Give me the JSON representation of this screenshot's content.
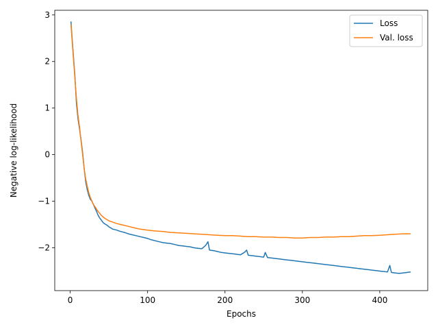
{
  "chart_data": {
    "type": "line",
    "title": "",
    "xlabel": "Epochs",
    "ylabel": "Negative log-likelihood",
    "xlim": [
      -20,
      462
    ],
    "ylim": [
      -2.92,
      3.1
    ],
    "xticks": [
      0,
      100,
      200,
      300,
      400
    ],
    "yticks": [
      -2,
      -1,
      0,
      1,
      2,
      3
    ],
    "grid": false,
    "legend_position": "top-right",
    "series": [
      {
        "name": "Loss",
        "color": "#1f77b4",
        "points": [
          [
            1,
            2.86
          ],
          [
            2,
            2.6
          ],
          [
            4,
            2.15
          ],
          [
            6,
            1.7
          ],
          [
            8,
            1.1
          ],
          [
            10,
            0.78
          ],
          [
            12,
            0.55
          ],
          [
            14,
            0.32
          ],
          [
            16,
            0.05
          ],
          [
            18,
            -0.3
          ],
          [
            20,
            -0.58
          ],
          [
            22,
            -0.75
          ],
          [
            24,
            -0.88
          ],
          [
            26,
            -0.96
          ],
          [
            28,
            -1.0
          ],
          [
            30,
            -1.07
          ],
          [
            32,
            -1.15
          ],
          [
            34,
            -1.22
          ],
          [
            36,
            -1.3
          ],
          [
            38,
            -1.36
          ],
          [
            40,
            -1.4
          ],
          [
            42,
            -1.45
          ],
          [
            44,
            -1.48
          ],
          [
            46,
            -1.5
          ],
          [
            48,
            -1.52
          ],
          [
            50,
            -1.55
          ],
          [
            55,
            -1.6
          ],
          [
            60,
            -1.62
          ],
          [
            65,
            -1.65
          ],
          [
            70,
            -1.67
          ],
          [
            75,
            -1.7
          ],
          [
            80,
            -1.72
          ],
          [
            85,
            -1.74
          ],
          [
            90,
            -1.76
          ],
          [
            95,
            -1.78
          ],
          [
            100,
            -1.8
          ],
          [
            105,
            -1.83
          ],
          [
            110,
            -1.85
          ],
          [
            115,
            -1.87
          ],
          [
            120,
            -1.89
          ],
          [
            125,
            -1.9
          ],
          [
            130,
            -1.91
          ],
          [
            135,
            -1.93
          ],
          [
            140,
            -1.95
          ],
          [
            145,
            -1.96
          ],
          [
            150,
            -1.97
          ],
          [
            155,
            -1.98
          ],
          [
            160,
            -2.0
          ],
          [
            165,
            -2.01
          ],
          [
            170,
            -2.02
          ],
          [
            175,
            -1.95
          ],
          [
            178,
            -1.87
          ],
          [
            180,
            -2.05
          ],
          [
            185,
            -2.06
          ],
          [
            190,
            -2.08
          ],
          [
            195,
            -2.1
          ],
          [
            200,
            -2.11
          ],
          [
            205,
            -2.12
          ],
          [
            210,
            -2.13
          ],
          [
            215,
            -2.14
          ],
          [
            220,
            -2.15
          ],
          [
            225,
            -2.1
          ],
          [
            228,
            -2.05
          ],
          [
            230,
            -2.16
          ],
          [
            235,
            -2.17
          ],
          [
            240,
            -2.18
          ],
          [
            245,
            -2.19
          ],
          [
            250,
            -2.2
          ],
          [
            252,
            -2.1
          ],
          [
            255,
            -2.21
          ],
          [
            260,
            -2.22
          ],
          [
            265,
            -2.23
          ],
          [
            270,
            -2.24
          ],
          [
            275,
            -2.25
          ],
          [
            280,
            -2.26
          ],
          [
            285,
            -2.27
          ],
          [
            290,
            -2.28
          ],
          [
            295,
            -2.29
          ],
          [
            300,
            -2.3
          ],
          [
            305,
            -2.31
          ],
          [
            310,
            -2.32
          ],
          [
            315,
            -2.33
          ],
          [
            320,
            -2.34
          ],
          [
            325,
            -2.35
          ],
          [
            330,
            -2.36
          ],
          [
            335,
            -2.37
          ],
          [
            340,
            -2.38
          ],
          [
            345,
            -2.39
          ],
          [
            350,
            -2.4
          ],
          [
            355,
            -2.41
          ],
          [
            360,
            -2.42
          ],
          [
            365,
            -2.43
          ],
          [
            370,
            -2.44
          ],
          [
            375,
            -2.45
          ],
          [
            380,
            -2.46
          ],
          [
            385,
            -2.47
          ],
          [
            390,
            -2.48
          ],
          [
            395,
            -2.49
          ],
          [
            400,
            -2.5
          ],
          [
            405,
            -2.51
          ],
          [
            410,
            -2.52
          ],
          [
            413,
            -2.38
          ],
          [
            415,
            -2.53
          ],
          [
            420,
            -2.54
          ],
          [
            425,
            -2.55
          ],
          [
            430,
            -2.54
          ],
          [
            435,
            -2.53
          ],
          [
            440,
            -2.52
          ]
        ]
      },
      {
        "name": "Val. loss",
        "color": "#ff7f0e",
        "points": [
          [
            1,
            2.8
          ],
          [
            2,
            2.55
          ],
          [
            4,
            2.1
          ],
          [
            6,
            1.65
          ],
          [
            8,
            1.2
          ],
          [
            10,
            0.85
          ],
          [
            12,
            0.6
          ],
          [
            14,
            0.3
          ],
          [
            16,
            0.0
          ],
          [
            18,
            -0.3
          ],
          [
            20,
            -0.52
          ],
          [
            22,
            -0.68
          ],
          [
            24,
            -0.82
          ],
          [
            26,
            -0.92
          ],
          [
            28,
            -1.0
          ],
          [
            30,
            -1.07
          ],
          [
            32,
            -1.12
          ],
          [
            34,
            -1.17
          ],
          [
            36,
            -1.22
          ],
          [
            38,
            -1.26
          ],
          [
            40,
            -1.3
          ],
          [
            42,
            -1.33
          ],
          [
            44,
            -1.36
          ],
          [
            46,
            -1.38
          ],
          [
            48,
            -1.4
          ],
          [
            50,
            -1.42
          ],
          [
            55,
            -1.45
          ],
          [
            60,
            -1.48
          ],
          [
            65,
            -1.5
          ],
          [
            70,
            -1.52
          ],
          [
            75,
            -1.54
          ],
          [
            80,
            -1.56
          ],
          [
            85,
            -1.58
          ],
          [
            90,
            -1.6
          ],
          [
            95,
            -1.61
          ],
          [
            100,
            -1.62
          ],
          [
            110,
            -1.64
          ],
          [
            120,
            -1.65
          ],
          [
            130,
            -1.67
          ],
          [
            140,
            -1.68
          ],
          [
            150,
            -1.69
          ],
          [
            160,
            -1.7
          ],
          [
            170,
            -1.71
          ],
          [
            180,
            -1.72
          ],
          [
            190,
            -1.73
          ],
          [
            200,
            -1.74
          ],
          [
            210,
            -1.74
          ],
          [
            220,
            -1.75
          ],
          [
            230,
            -1.76
          ],
          [
            240,
            -1.76
          ],
          [
            250,
            -1.77
          ],
          [
            260,
            -1.77
          ],
          [
            270,
            -1.78
          ],
          [
            280,
            -1.78
          ],
          [
            290,
            -1.79
          ],
          [
            300,
            -1.79
          ],
          [
            310,
            -1.78
          ],
          [
            320,
            -1.78
          ],
          [
            330,
            -1.77
          ],
          [
            340,
            -1.77
          ],
          [
            350,
            -1.76
          ],
          [
            360,
            -1.76
          ],
          [
            370,
            -1.75
          ],
          [
            380,
            -1.74
          ],
          [
            390,
            -1.74
          ],
          [
            400,
            -1.73
          ],
          [
            410,
            -1.72
          ],
          [
            420,
            -1.71
          ],
          [
            430,
            -1.7
          ],
          [
            440,
            -1.7
          ]
        ]
      }
    ]
  }
}
